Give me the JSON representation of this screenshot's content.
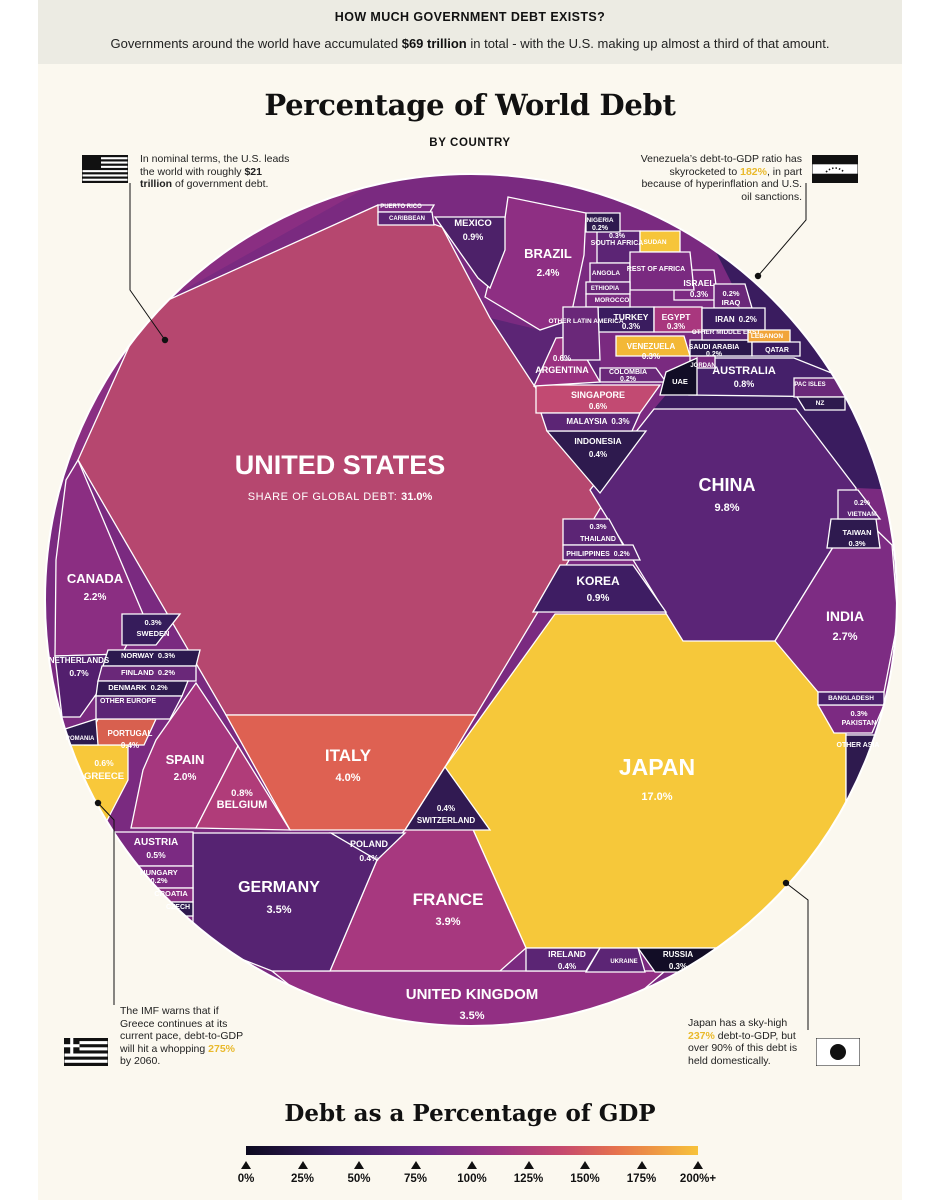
{
  "header": {
    "kicker": "HOW MUCH GOVERNMENT DEBT EXISTS?",
    "lede_before": "Governments around the world have accumulated ",
    "lede_bold": "$69 trillion",
    "lede_after": " in total - with the U.S. making up almost a third of that amount."
  },
  "title": "Percentage of World Debt",
  "subtitle": "BY COUNTRY",
  "notes": {
    "us": {
      "pre": "In nominal terms, the U.S. leads the world with roughly ",
      "bold": "$21 trillion",
      "post": " of government debt."
    },
    "venezuela": {
      "pre": "Venezuela’s debt-to-GDP ratio has skyrocketed to ",
      "hl": "182%",
      "post": ", in part because of hyperinflation and U.S. oil sanctions."
    },
    "greece": {
      "pre": "The IMF warns that if Greece continues at its current pace, debt-to-GDP will hit a whopping ",
      "hl": "275%",
      "post": " by 2060."
    },
    "japan": {
      "pre": "Japan has a sky-high ",
      "hl": "237%",
      "post": " debt-to-GDP, but over 90% of this debt is held domestically."
    }
  },
  "chart_data": {
    "type": "voronoi-treemap",
    "title": "Percentage of World Debt",
    "subtitle": "BY COUNTRY",
    "value_label": "SHARE OF GLOBAL DEBT:",
    "color_scale_title": "Debt as a Percentage of GDP",
    "color_scale_ticks": [
      "0%",
      "25%",
      "50%",
      "75%",
      "100%",
      "125%",
      "150%",
      "175%",
      "200%+"
    ],
    "colors": {
      "low": "#0c0a1f",
      "mid": "#8f2f86",
      "high": "#f7c23a"
    },
    "cells": [
      {
        "name": "UNITED STATES",
        "value": "31.0%",
        "share": 31.0,
        "color": "#b6476f"
      },
      {
        "name": "JAPAN",
        "value": "17.0%",
        "share": 17.0,
        "color": "#f6c83a"
      },
      {
        "name": "CHINA",
        "value": "9.8%",
        "share": 9.8,
        "color": "#5b2577"
      },
      {
        "name": "ITALY",
        "value": "4.0%",
        "share": 4.0,
        "color": "#de6152"
      },
      {
        "name": "FRANCE",
        "value": "3.9%",
        "share": 3.9,
        "color": "#a7387f"
      },
      {
        "name": "UNITED KINGDOM",
        "value": "3.5%",
        "share": 3.5,
        "color": "#922f83"
      },
      {
        "name": "GERMANY",
        "value": "3.5%",
        "share": 3.5,
        "color": "#562372"
      },
      {
        "name": "INDIA",
        "value": "2.7%",
        "share": 2.7,
        "color": "#7d2c83"
      },
      {
        "name": "BRAZIL",
        "value": "2.4%",
        "share": 2.4,
        "color": "#8e2f83"
      },
      {
        "name": "CANADA",
        "value": "2.2%",
        "share": 2.2,
        "color": "#8b2e82"
      },
      {
        "name": "SPAIN",
        "value": "2.0%",
        "share": 2.0,
        "color": "#a6377e"
      },
      {
        "name": "KOREA",
        "value": "0.9%",
        "share": 0.9,
        "color": "#3e1d63"
      },
      {
        "name": "MEXICO",
        "value": "0.9%",
        "share": 0.9,
        "color": "#4d2169"
      },
      {
        "name": "AUSTRALIA",
        "value": "0.8%",
        "share": 0.8,
        "color": "#45206a"
      },
      {
        "name": "BELGIUM",
        "value": "0.8%",
        "share": 0.8,
        "color": "#b03c79"
      },
      {
        "name": "NETHERLANDS",
        "value": "0.7%",
        "share": 0.7,
        "color": "#531f6e"
      },
      {
        "name": "GREECE",
        "value": "0.6%",
        "share": 0.6,
        "color": "#f8c83a"
      },
      {
        "name": "SINGAPORE",
        "value": "0.6%",
        "share": 0.6,
        "color": "#c24a72"
      },
      {
        "name": "ARGENTINA",
        "value": "0.6%",
        "share": 0.6,
        "color": "#9a3180"
      },
      {
        "name": "AUSTRIA",
        "value": "0.5%",
        "share": 0.5,
        "color": "#7b2a82"
      },
      {
        "name": "PORTUGAL",
        "value": "0.4%",
        "share": 0.4,
        "color": "#d8604f"
      },
      {
        "name": "POLAND",
        "value": "0.4%",
        "share": 0.4,
        "color": "#4a206b"
      },
      {
        "name": "SWITZERLAND",
        "value": "0.4%",
        "share": 0.4,
        "color": "#311a52"
      },
      {
        "name": "INDONESIA",
        "value": "0.4%",
        "share": 0.4,
        "color": "#2e1a4e"
      },
      {
        "name": "IRELAND",
        "value": "0.4%",
        "share": 0.4,
        "color": "#5b2574"
      },
      {
        "name": "SWEDEN",
        "value": "0.3%",
        "share": 0.3,
        "color": "#361c5b"
      },
      {
        "name": "NORWAY",
        "value": "0.3%",
        "share": 0.3,
        "color": "#2c194f"
      },
      {
        "name": "MALAYSIA",
        "value": "0.3%",
        "share": 0.3,
        "color": "#5c2575"
      },
      {
        "name": "THAILAND",
        "value": "0.3%",
        "share": 0.3,
        "color": "#5c2575"
      },
      {
        "name": "RUSSIA",
        "value": "0.3%",
        "share": 0.3,
        "color": "#120d26"
      },
      {
        "name": "PAKISTAN",
        "value": "0.3%",
        "share": 0.3,
        "color": "#7c2a82"
      },
      {
        "name": "TAIWAN",
        "value": "0.3%",
        "share": 0.3,
        "color": "#2e1a4f"
      },
      {
        "name": "SOUTH AFRICA",
        "value": "0.3%",
        "share": 0.3,
        "color": "#5c2575"
      },
      {
        "name": "ISRAEL",
        "value": "0.3%",
        "share": 0.3,
        "color": "#7c2a82"
      },
      {
        "name": "TURKEY",
        "value": "0.3%",
        "share": 0.3,
        "color": "#3a1c5f"
      },
      {
        "name": "EGYPT",
        "value": "0.3%",
        "share": 0.3,
        "color": "#a9377e"
      },
      {
        "name": "VENEZUELA",
        "value": "0.3%",
        "share": 0.3,
        "color": "#f3b836"
      },
      {
        "name": "FINLAND",
        "value": "0.2%",
        "share": 0.2,
        "color": "#6a2879"
      },
      {
        "name": "DENMARK",
        "value": "0.2%",
        "share": 0.2,
        "color": "#2e1a4e"
      },
      {
        "name": "HUNGARY",
        "value": "0.2%",
        "share": 0.2,
        "color": "#7a2a80"
      },
      {
        "name": "PHILIPPINES",
        "value": "0.2%",
        "share": 0.2,
        "color": "#5c2575"
      },
      {
        "name": "VIETNAM",
        "value": "0.2%",
        "share": 0.2,
        "color": "#5c2575"
      },
      {
        "name": "NIGERIA",
        "value": "0.2%",
        "share": 0.2,
        "color": "#2e1a4e"
      },
      {
        "name": "IRAQ",
        "value": "0.2%",
        "share": 0.2,
        "color": "#6a2879"
      },
      {
        "name": "IRAN",
        "value": "0.2%",
        "share": 0.2,
        "color": "#3a1c5f"
      },
      {
        "name": "SAUDI ARABIA",
        "value": "0.2%",
        "share": 0.2,
        "color": "#2a184b"
      },
      {
        "name": "COLOMBIA",
        "value": "0.2%",
        "share": 0.2,
        "color": "#6a2879"
      },
      {
        "name": "PUERTO RICO",
        "value": null,
        "share": null,
        "color": "#7c2a82"
      },
      {
        "name": "CARIBBEAN",
        "value": null,
        "share": null,
        "color": "#5c2575"
      },
      {
        "name": "SUDAN",
        "value": null,
        "share": null,
        "color": "#f6c53a"
      },
      {
        "name": "ANGOLA",
        "value": null,
        "share": null,
        "color": "#6a2879"
      },
      {
        "name": "REST OF AFRICA",
        "value": null,
        "share": null,
        "color": "#7a2a80"
      },
      {
        "name": "ETHIOPIA",
        "value": null,
        "share": null,
        "color": "#6a2879"
      },
      {
        "name": "MOROCCO",
        "value": null,
        "share": null,
        "color": "#7a2a80"
      },
      {
        "name": "OTHER LATIN AMERICA",
        "value": null,
        "share": null,
        "color": "#6a2879"
      },
      {
        "name": "OTHER MIDDLE EAST",
        "value": null,
        "share": null,
        "color": "#5c2575"
      },
      {
        "name": "LEBANON",
        "value": null,
        "share": null,
        "color": "#f1a53a"
      },
      {
        "name": "QATAR",
        "value": null,
        "share": null,
        "color": "#3a1c5f"
      },
      {
        "name": "JORDAN",
        "value": null,
        "share": null,
        "color": "#7a2a80"
      },
      {
        "name": "UAE",
        "value": null,
        "share": null,
        "color": "#120d26"
      },
      {
        "name": "PAC ISLES",
        "value": null,
        "share": null,
        "color": "#6a2879"
      },
      {
        "name": "NZ",
        "value": null,
        "share": null,
        "color": "#2e1a4e"
      },
      {
        "name": "BANGLADESH",
        "value": null,
        "share": null,
        "color": "#4a206b"
      },
      {
        "name": "OTHER ASIA",
        "value": null,
        "share": null,
        "color": "#2e1a4e"
      },
      {
        "name": "OTHER EUROPE",
        "value": null,
        "share": null,
        "color": "#5c2575"
      },
      {
        "name": "ROMANIA",
        "value": null,
        "share": null,
        "color": "#2e1a4e"
      },
      {
        "name": "CROATIA",
        "value": null,
        "share": null,
        "color": "#8a2e82"
      },
      {
        "name": "CZECH",
        "value": null,
        "share": null,
        "color": "#2e1a4e"
      },
      {
        "name": "UKRAINE",
        "value": null,
        "share": null,
        "color": "#5c2575"
      }
    ]
  }
}
